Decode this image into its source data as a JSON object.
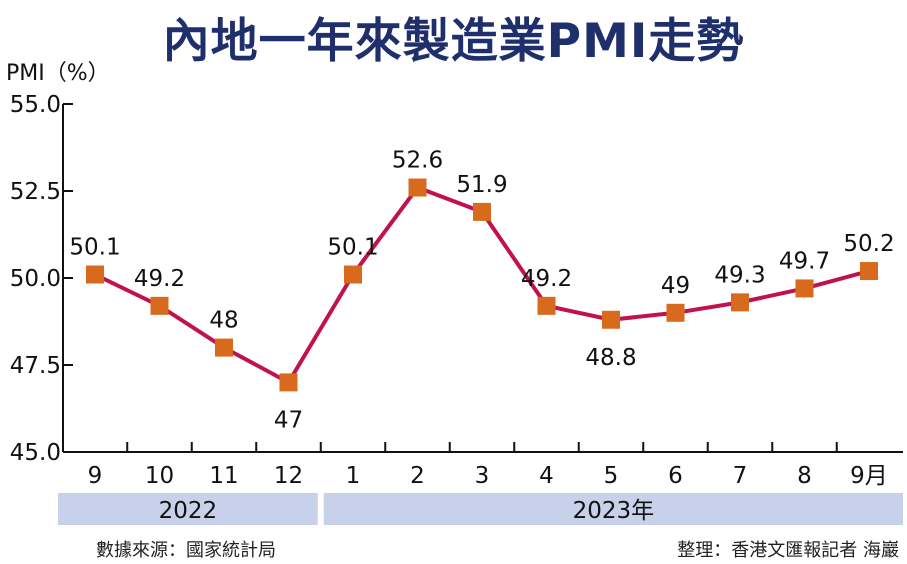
{
  "title": "內地一年來製造業PMI走勢",
  "source": "數據來源：國家統計局",
  "credit": "整理：香港文匯報記者 海巖",
  "colors": {
    "title": "#1f2f6b",
    "line": "#c0124e",
    "marker": "#d86a1e",
    "year_band": "#c7d1ea"
  },
  "chart_data": {
    "type": "line",
    "title": "",
    "ylabel": "PMI（%）",
    "xlabel": "",
    "ylim": [
      45.0,
      55.0
    ],
    "yticks": [
      "45.0",
      "47.5",
      "50.0",
      "52.5",
      "55.0"
    ],
    "categories": [
      "9",
      "10",
      "11",
      "12",
      "1",
      "2",
      "3",
      "4",
      "5",
      "6",
      "7",
      "8",
      "9月"
    ],
    "year_groups": [
      {
        "label": "2022",
        "months": 4
      },
      {
        "label": "2023年",
        "months": 9
      }
    ],
    "series": [
      {
        "values": [
          50.1,
          49.2,
          48,
          47,
          50.1,
          52.6,
          51.9,
          49.2,
          48.8,
          49,
          49.3,
          49.7,
          50.2
        ],
        "labels": [
          "50.1",
          "49.2",
          "48",
          "47",
          "50.1",
          "52.6",
          "51.9",
          "49.2",
          "48.8",
          "49",
          "49.3",
          "49.7",
          "50.2"
        ]
      }
    ],
    "grid": false,
    "legend": "none"
  }
}
